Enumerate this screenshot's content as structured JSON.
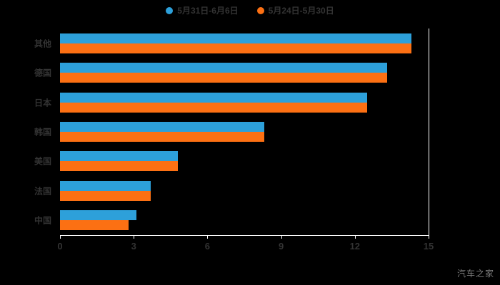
{
  "legend": [
    {
      "label": "5月31日-6月6日",
      "color": "#2DA0DA"
    },
    {
      "label": "5月24日-5月30日",
      "color": "#FC7013"
    }
  ],
  "watermark": "汽车之家",
  "chart_data": {
    "type": "bar",
    "orientation": "horizontal",
    "title": "",
    "categories": [
      "其他",
      "德国",
      "日本",
      "韩国",
      "美国",
      "法国",
      "中国"
    ],
    "series": [
      {
        "name": "5月31日-6月6日",
        "color": "#2DA0DA",
        "values": [
          14.3,
          13.3,
          12.5,
          8.3,
          4.8,
          3.7,
          3.1
        ]
      },
      {
        "name": "5月24日-5月30日",
        "color": "#FC7013",
        "values": [
          14.3,
          13.3,
          12.5,
          8.3,
          4.8,
          3.7,
          2.8
        ]
      }
    ],
    "xlim": [
      0,
      15
    ],
    "xticks": [
      0,
      3,
      6,
      9,
      12,
      15
    ],
    "grid": false,
    "legend_position": "top",
    "background": "#000000",
    "text_color": "#333333",
    "axis_color": "#ffffff"
  }
}
